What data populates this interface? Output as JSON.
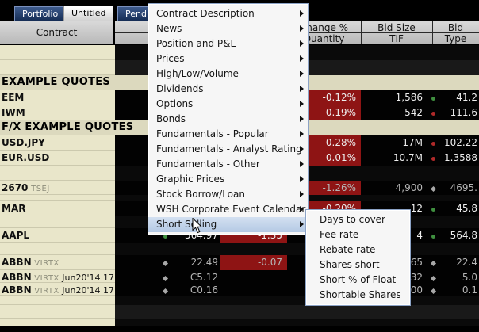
{
  "tabs": [
    {
      "label": "Portfolio",
      "active": false
    },
    {
      "label": "Untitled",
      "active": true
    },
    {
      "label": "Pending",
      "active": false
    }
  ],
  "header": {
    "contract": "Contract",
    "cols_row1": [
      "Change %",
      "Bid Size",
      "Bid"
    ],
    "cols_row2": [
      "Quantity",
      "TIF",
      "Type"
    ]
  },
  "rows": [
    {
      "type": "empty"
    },
    {
      "type": "empty"
    },
    {
      "type": "group",
      "label": "EXAMPLE QUOTES"
    },
    {
      "type": "data",
      "ticker": "EEM",
      "change_pct": "-0.12%",
      "bid_size": "1,586",
      "tif_marker": {
        "color": "green",
        "shape": "circle"
      },
      "bid": "41.2"
    },
    {
      "type": "data",
      "ticker": "IWM",
      "change_pct": "-0.19%",
      "bid_size": "542",
      "tif_marker": {
        "color": "red",
        "shape": "circle"
      },
      "bid": "111.6"
    },
    {
      "type": "group",
      "label": "F/X EXAMPLE QUOTES"
    },
    {
      "type": "data",
      "ticker": "USD.JPY",
      "change_pct": "-0.28%",
      "bid_size": "17M",
      "tif_marker": {
        "color": "red",
        "shape": "circle"
      },
      "bid": "102.22"
    },
    {
      "type": "data",
      "ticker": "EUR.USD",
      "change_pct": "-0.01%",
      "bid_size": "10.7M",
      "tif_marker": {
        "color": "red",
        "shape": "circle"
      },
      "bid": "1.3588"
    },
    {
      "type": "empty"
    },
    {
      "type": "data",
      "ticker": "2670",
      "suffix": "TSEJ",
      "dim": true,
      "change_pct": "-1.26%",
      "bid_size": "4,900",
      "tif_marker": {
        "color": "gray",
        "shape": "diamond"
      },
      "bid": "4695."
    },
    {
      "type": "empty"
    },
    {
      "type": "data",
      "ticker": "MAR",
      "change_pct": "-0.20%",
      "bid_size": "12",
      "tif_marker": {
        "color": "green",
        "shape": "circle"
      },
      "bid": "45.8"
    },
    {
      "type": "empty"
    },
    {
      "type": "data",
      "ticker": "AAPL",
      "last": "564.97",
      "last_marker": {
        "color": "green",
        "shape": "circle"
      },
      "change": "-1.35",
      "bid_size": "4",
      "tif_marker": {
        "color": "green",
        "shape": "circle"
      },
      "bid": "564.8"
    },
    {
      "type": "empty"
    },
    {
      "type": "data",
      "ticker": "ABBN",
      "suffix": "VIRTX",
      "dim": true,
      "last": "22.49",
      "last_marker": {
        "color": "gray",
        "shape": "diamond"
      },
      "change": "-0.07",
      "bid_size": "65",
      "tif_marker": {
        "color": "gray",
        "shape": "diamond"
      },
      "bid": "22.4"
    },
    {
      "type": "data",
      "ticker": "ABBN",
      "suffix": "VIRTX",
      "extra": "Jun20'14 17....",
      "dim": true,
      "last": "C5.12",
      "last_marker": {
        "color": "gray",
        "shape": "diamond"
      },
      "bid_size": "32",
      "tif_marker": {
        "color": "gray",
        "shape": "diamond"
      },
      "bid": "5.0"
    },
    {
      "type": "data",
      "ticker": "ABBN",
      "suffix": "VIRTX",
      "extra": "Jun20'14 17....",
      "dim": true,
      "last": "C0.16",
      "last_marker": {
        "color": "gray",
        "shape": "diamond"
      },
      "bid_size": "00",
      "tif_marker": {
        "color": "gray",
        "shape": "diamond"
      },
      "bid": "0.1"
    },
    {
      "type": "empty"
    },
    {
      "type": "empty"
    },
    {
      "type": "empty"
    }
  ],
  "menu": {
    "highlight_index": 14,
    "items": [
      {
        "label": "Contract Description"
      },
      {
        "label": "News"
      },
      {
        "label": "Position and P&L"
      },
      {
        "label": "Prices"
      },
      {
        "label": "High/Low/Volume"
      },
      {
        "label": "Dividends"
      },
      {
        "label": "Options"
      },
      {
        "label": "Bonds"
      },
      {
        "label": "Fundamentals - Popular"
      },
      {
        "label": "Fundamentals - Analyst Rating"
      },
      {
        "label": "Fundamentals - Other"
      },
      {
        "label": "Graphic Prices"
      },
      {
        "label": "Stock Borrow/Loan"
      },
      {
        "label": "WSH Corporate Event Calendar"
      },
      {
        "label": "Short Selling"
      }
    ]
  },
  "submenu": {
    "items": [
      {
        "label": "Days to cover"
      },
      {
        "label": "Fee rate"
      },
      {
        "label": "Rebate rate"
      },
      {
        "label": "Shares short"
      },
      {
        "label": "Short % of Float"
      },
      {
        "label": "Shortable Shares"
      }
    ]
  },
  "colors": {
    "negative_cell": "#8e1414",
    "menu_highlight": "#b4c9e4",
    "contract_column": "#e9e6ca",
    "marker_green": "#3f8f3f",
    "marker_red": "#b02a2a",
    "marker_gray": "#a8a8a8"
  }
}
